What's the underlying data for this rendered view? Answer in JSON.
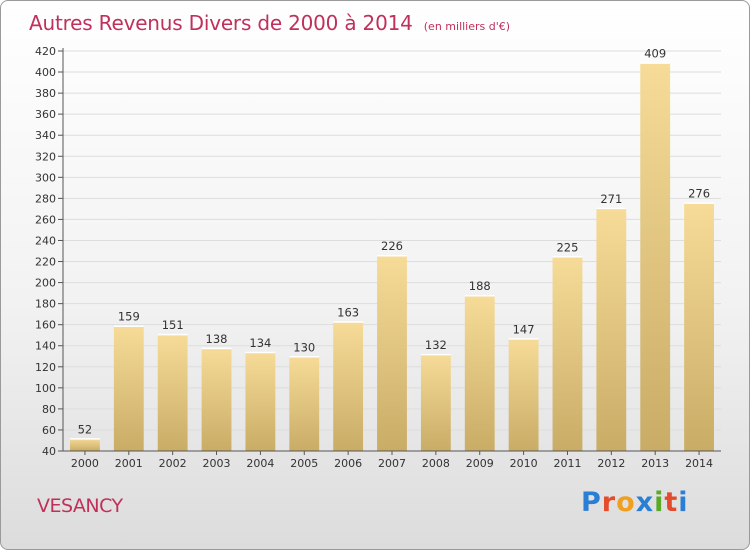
{
  "header": {
    "title": "Autres Revenus Divers de 2000 à 2014",
    "subtitle": "(en milliers d'€)"
  },
  "footer": {
    "place": "VESANCY",
    "logo_text": "Proxiti"
  },
  "colors": {
    "title": "#c0305a",
    "bar_light": "#f6dc98",
    "bar_dark": "#c9ac66",
    "grid": "#dddddd",
    "logo_letters": [
      "#2a7fd4",
      "#e34b2c",
      "#f0a020",
      "#2a7fd4",
      "#5aaa2a",
      "#e34b2c",
      "#2a7fd4"
    ]
  },
  "chart_data": {
    "type": "bar",
    "categories": [
      "2000",
      "2001",
      "2002",
      "2003",
      "2004",
      "2005",
      "2006",
      "2007",
      "2008",
      "2009",
      "2010",
      "2011",
      "2012",
      "2013",
      "2014"
    ],
    "values": [
      52,
      159,
      151,
      138,
      134,
      130,
      163,
      226,
      132,
      188,
      147,
      225,
      271,
      409,
      276
    ],
    "title": "Autres Revenus Divers de 2000 à 2014",
    "xlabel": "",
    "ylabel": "",
    "ylim": [
      40,
      420
    ],
    "yticks": [
      40,
      60,
      80,
      100,
      120,
      140,
      160,
      180,
      200,
      220,
      240,
      260,
      280,
      300,
      320,
      340,
      360,
      380,
      400,
      420
    ],
    "grid": true,
    "data_labels": true
  }
}
